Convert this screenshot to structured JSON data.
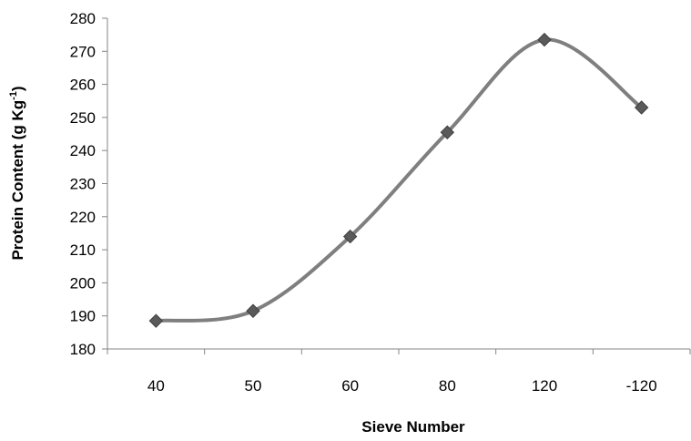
{
  "chart_data": {
    "type": "line",
    "categories": [
      "40",
      "50",
      "60",
      "80",
      "120",
      "-120"
    ],
    "series": [
      {
        "values": [
          188.5,
          191.5,
          214,
          245.5,
          273.5,
          253
        ],
        "color": "#7f7f7f",
        "marker": "diamond",
        "smooth": true
      }
    ],
    "xlabel": "Sieve Number",
    "ylabel": {
      "main": "Protein Content (g Kg",
      "superscript": "-1",
      "close": ")"
    },
    "ylim": [
      180,
      280
    ],
    "yticks": [
      "180",
      "190",
      "200",
      "210",
      "220",
      "230",
      "240",
      "250",
      "260",
      "270",
      "280"
    ],
    "grid": false,
    "legend": "none"
  }
}
